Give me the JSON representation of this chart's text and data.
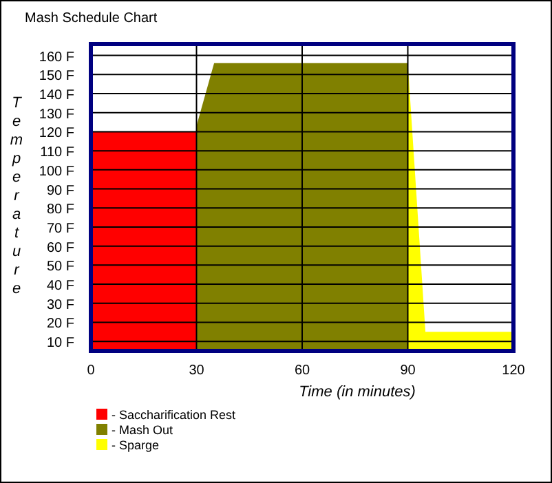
{
  "chart_data": {
    "type": "area",
    "title": "Mash Schedule Chart",
    "xlabel": "Time (in minutes)",
    "ylabel": "Temperature",
    "xlim": [
      0,
      120
    ],
    "xticks": [
      0,
      30,
      60,
      90,
      120
    ],
    "ylim": [
      5,
      166
    ],
    "yticks": [
      {
        "value": 10,
        "label": "10 F"
      },
      {
        "value": 20,
        "label": "20 F"
      },
      {
        "value": 30,
        "label": "30 F"
      },
      {
        "value": 40,
        "label": "40 F"
      },
      {
        "value": 50,
        "label": "50 F"
      },
      {
        "value": 60,
        "label": "60 F"
      },
      {
        "value": 70,
        "label": "70 F"
      },
      {
        "value": 80,
        "label": "80 F"
      },
      {
        "value": 90,
        "label": "90 F"
      },
      {
        "value": 100,
        "label": "100 F"
      },
      {
        "value": 110,
        "label": "110 F"
      },
      {
        "value": 120,
        "label": "120 F"
      },
      {
        "value": 130,
        "label": "130 F"
      },
      {
        "value": 140,
        "label": "140 F"
      },
      {
        "value": 150,
        "label": "150 F"
      },
      {
        "value": 160,
        "label": "160 F"
      }
    ],
    "grid": true,
    "legend": "bottom left",
    "series": [
      {
        "name": "- Saccharification Rest",
        "color": "#ff0000",
        "x": [
          0,
          30
        ],
        "values": [
          120,
          120
        ]
      },
      {
        "name": "- Mash Out",
        "color": "#808000",
        "x": [
          30,
          35,
          90
        ],
        "values": [
          123,
          156,
          156
        ]
      },
      {
        "name": "- Sparge",
        "color": "#ffff00",
        "x": [
          90,
          95,
          120
        ],
        "values": [
          156,
          15,
          15
        ]
      }
    ]
  }
}
